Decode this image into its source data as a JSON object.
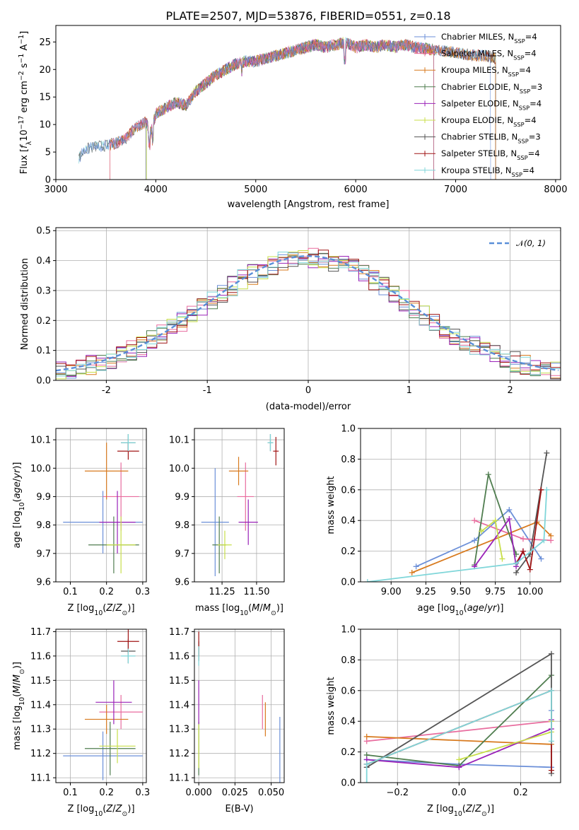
{
  "chart_data": [
    {
      "id": "spectrum",
      "type": "line",
      "title": "PLATE=2507, MJD=53876, FIBERID=0551, z=0.18",
      "xlabel": "wavelength [Angstrom, rest frame]",
      "ylabel": "Flux [fλ10⁻¹⁷ erg cm⁻² s⁻¹ A⁻¹]",
      "xlim": [
        3000,
        8050
      ],
      "ylim": [
        0,
        28
      ],
      "xticks": [
        3000,
        4000,
        5000,
        6000,
        7000,
        8000
      ],
      "yticks": [
        0,
        5,
        10,
        15,
        20,
        25
      ],
      "legend_position": "top-right",
      "spectrum_points": [
        [
          3230,
          4.0
        ],
        [
          3300,
          5.5
        ],
        [
          3400,
          6.0
        ],
        [
          3500,
          6.2
        ],
        [
          3600,
          6.6
        ],
        [
          3700,
          7.5
        ],
        [
          3800,
          9.5
        ],
        [
          3900,
          10.5
        ],
        [
          3950,
          8.5
        ],
        [
          4000,
          12.0
        ],
        [
          4100,
          13.0
        ],
        [
          4200,
          14.0
        ],
        [
          4300,
          13.5
        ],
        [
          4400,
          16.0
        ],
        [
          4500,
          17.5
        ],
        [
          4600,
          19.0
        ],
        [
          4700,
          20.0
        ],
        [
          4800,
          21.0
        ],
        [
          4900,
          21.5
        ],
        [
          5000,
          21.5
        ],
        [
          5100,
          22.0
        ],
        [
          5200,
          22.5
        ],
        [
          5300,
          23.0
        ],
        [
          5400,
          23.5
        ],
        [
          5500,
          24.0
        ],
        [
          5600,
          24.5
        ],
        [
          5700,
          24.0
        ],
        [
          5800,
          24.5
        ],
        [
          5900,
          25.0
        ],
        [
          6000,
          24.0
        ],
        [
          6100,
          24.5
        ],
        [
          6200,
          24.0
        ],
        [
          6300,
          24.5
        ],
        [
          6400,
          24.0
        ],
        [
          6500,
          24.5
        ],
        [
          6600,
          24.0
        ],
        [
          6700,
          23.8
        ],
        [
          6800,
          23.5
        ],
        [
          6900,
          23.3
        ],
        [
          7000,
          23.0
        ],
        [
          7100,
          22.8
        ],
        [
          7200,
          22.5
        ],
        [
          7300,
          22.5
        ],
        [
          7400,
          22.0
        ]
      ],
      "series": [
        {
          "name": "Chabrier MILES, N_SSP=4",
          "color": "#6b8fd8",
          "cut": [
            3230,
            7350
          ]
        },
        {
          "name": "Salpeter MILES, N_SSP=4",
          "color": "#e86c9e",
          "cut": [
            3540,
            6780
          ]
        },
        {
          "name": "Kroupa MILES, N_SSP=4",
          "color": "#d87a1e",
          "cut": [
            3540,
            7400
          ]
        },
        {
          "name": "Chabrier ELODIE, N_SSP=3",
          "color": "#4f7d4f",
          "cut": [
            3900,
            6780
          ]
        },
        {
          "name": "Salpeter ELODIE, N_SSP=4",
          "color": "#9a22b8",
          "cut": [
            3900,
            6780
          ]
        },
        {
          "name": "Kroupa ELODIE, N_SSP=4",
          "color": "#c8df4a",
          "cut": [
            3910,
            6780
          ]
        },
        {
          "name": "Chabrier STELIB, N_SSP=3",
          "color": "#555555",
          "cut": [
            3230,
            7400
          ]
        },
        {
          "name": "Salpeter STELIB, N_SSP=4",
          "color": "#a01515",
          "cut": [
            3540,
            7400
          ]
        },
        {
          "name": "Kroupa STELIB, N_SSP=4",
          "color": "#7fd6d9",
          "cut": [
            3230,
            7400
          ]
        }
      ]
    },
    {
      "id": "residuals",
      "type": "histogram",
      "xlabel": "(data-model)/error",
      "ylabel": "Normed distribution",
      "xlim": [
        -2.5,
        2.5
      ],
      "ylim": [
        0,
        0.51
      ],
      "xticks": [
        -2,
        -1,
        0,
        1,
        2
      ],
      "yticks": [
        0.0,
        0.1,
        0.2,
        0.3,
        0.4,
        0.5
      ],
      "grid": true,
      "legend_position": "top-right",
      "reference_curve": {
        "name": "𝒩(0,1)",
        "color": "#5a8fd8"
      }
    },
    {
      "id": "age_vs_Z",
      "type": "errorbar",
      "xlabel": "Z [log10(Z/Z⊙)]",
      "ylabel": "age  [log10(age/yr)]",
      "xlim": [
        0.06,
        0.31
      ],
      "ylim": [
        9.6,
        10.14
      ],
      "xticks": [
        0.1,
        0.2,
        0.3
      ],
      "yticks": [
        9.6,
        9.7,
        9.8,
        9.9,
        10.0,
        10.1
      ],
      "grid": true,
      "points": [
        {
          "x": 0.19,
          "y": 9.81,
          "xerr": 0.11,
          "yerr": 0.11,
          "color": "#6b8fd8"
        },
        {
          "x": 0.24,
          "y": 9.9,
          "xerr": 0.05,
          "yerr": 0.12,
          "color": "#e86c9e"
        },
        {
          "x": 0.2,
          "y": 9.99,
          "xerr": 0.06,
          "yerr": 0.1,
          "color": "#d87a1e"
        },
        {
          "x": 0.22,
          "y": 9.73,
          "xerr": 0.07,
          "yerr": 0.1,
          "color": "#4f7d4f"
        },
        {
          "x": 0.23,
          "y": 9.81,
          "xerr": 0.05,
          "yerr": 0.11,
          "color": "#9a22b8"
        },
        {
          "x": 0.24,
          "y": 9.73,
          "xerr": 0.04,
          "yerr": 0.1,
          "color": "#c8df4a"
        },
        {
          "x": 0.26,
          "y": 10.09,
          "xerr": 0.02,
          "yerr": 0.03,
          "color": "#555555"
        },
        {
          "x": 0.26,
          "y": 10.06,
          "xerr": 0.03,
          "yerr": 0.03,
          "color": "#a01515"
        },
        {
          "x": 0.26,
          "y": 10.09,
          "xerr": 0.02,
          "yerr": 0.03,
          "color": "#7fd6d9"
        }
      ]
    },
    {
      "id": "age_vs_mass",
      "type": "errorbar",
      "xlabel": "mass [log10(M/M⊙)]",
      "ylabel": "",
      "xlim": [
        11.05,
        11.7
      ],
      "ylim": [
        9.6,
        10.14
      ],
      "xticks": [
        11.25,
        11.5
      ],
      "xticklabels": [
        "11.25",
        "11.50"
      ],
      "yticks": [
        9.6,
        9.7,
        9.8,
        9.9,
        10.0,
        10.1
      ],
      "grid": true,
      "points": [
        {
          "x": 11.2,
          "y": 9.81,
          "xerr": 0.1,
          "yerr": 0.19,
          "color": "#6b8fd8"
        },
        {
          "x": 11.42,
          "y": 9.9,
          "xerr": 0.06,
          "yerr": 0.12,
          "color": "#e86c9e"
        },
        {
          "x": 11.37,
          "y": 9.99,
          "xerr": 0.07,
          "yerr": 0.05,
          "color": "#d87a1e"
        },
        {
          "x": 11.23,
          "y": 9.73,
          "xerr": 0.05,
          "yerr": 0.1,
          "color": "#4f7d4f"
        },
        {
          "x": 11.44,
          "y": 9.81,
          "xerr": 0.07,
          "yerr": 0.08,
          "color": "#9a22b8"
        },
        {
          "x": 11.27,
          "y": 9.73,
          "xerr": 0.05,
          "yerr": 0.05,
          "color": "#c8df4a"
        },
        {
          "x": 11.6,
          "y": 10.09,
          "xerr": 0.02,
          "yerr": 0.03,
          "color": "#555555"
        },
        {
          "x": 11.64,
          "y": 10.06,
          "xerr": 0.02,
          "yerr": 0.05,
          "color": "#a01515"
        },
        {
          "x": 11.6,
          "y": 10.09,
          "xerr": 0.02,
          "yerr": 0.03,
          "color": "#7fd6d9"
        }
      ]
    },
    {
      "id": "weight_vs_age",
      "type": "line",
      "xlabel": "age  [log10(age/yr)]",
      "ylabel": "mass weight",
      "xlim": [
        8.78,
        10.22
      ],
      "ylim": [
        0,
        1.0
      ],
      "xticks": [
        9.0,
        9.25,
        9.5,
        9.75,
        10.0
      ],
      "xticklabels": [
        "9.00",
        "9.25",
        "9.50",
        "9.75",
        "10.00"
      ],
      "yticks": [
        0.0,
        0.2,
        0.4,
        0.6,
        0.8,
        1.0
      ],
      "grid": true,
      "series": [
        {
          "color": "#6b8fd8",
          "x": [
            9.18,
            9.6,
            9.85,
            10.08
          ],
          "y": [
            0.1,
            0.27,
            0.47,
            0.15
          ]
        },
        {
          "color": "#e86c9e",
          "x": [
            9.6,
            9.95,
            10.15
          ],
          "y": [
            0.4,
            0.28,
            0.27
          ]
        },
        {
          "color": "#d87a1e",
          "x": [
            9.15,
            10.05,
            10.15
          ],
          "y": [
            0.06,
            0.39,
            0.3
          ]
        },
        {
          "color": "#4f7d4f",
          "x": [
            9.6,
            9.7,
            9.9
          ],
          "y": [
            0.11,
            0.7,
            0.18
          ]
        },
        {
          "color": "#9a22b8",
          "x": [
            9.6,
            9.85,
            9.9,
            9.95
          ],
          "y": [
            0.1,
            0.41,
            0.1,
            0.2
          ]
        },
        {
          "color": "#c8df4a",
          "x": [
            9.65,
            9.75,
            9.8
          ],
          "y": [
            0.33,
            0.4,
            0.15
          ]
        },
        {
          "color": "#555555",
          "x": [
            9.9,
            10.0,
            10.12
          ],
          "y": [
            0.06,
            0.18,
            0.84
          ]
        },
        {
          "color": "#a01515",
          "x": [
            9.9,
            9.95,
            10.0,
            10.08
          ],
          "y": [
            0.12,
            0.2,
            0.08,
            0.6
          ]
        },
        {
          "color": "#7fd6d9",
          "x": [
            8.83,
            9.9,
            10.1,
            10.12
          ],
          "y": [
            0.0,
            0.12,
            0.27,
            0.6
          ]
        }
      ]
    },
    {
      "id": "mass_vs_Z",
      "type": "errorbar",
      "xlabel": "Z [log10(Z/Z⊙)]",
      "ylabel": "mass [log10(M/M⊙)]",
      "xlim": [
        0.06,
        0.31
      ],
      "ylim": [
        11.08,
        11.71
      ],
      "xticks": [
        0.1,
        0.2,
        0.3
      ],
      "yticks": [
        11.1,
        11.2,
        11.3,
        11.4,
        11.5,
        11.6,
        11.7
      ],
      "grid": true,
      "points": [
        {
          "x": 0.19,
          "y": 11.19,
          "xerr": 0.11,
          "yerr": 0.1,
          "color": "#6b8fd8"
        },
        {
          "x": 0.24,
          "y": 11.37,
          "xerr": 0.06,
          "yerr": 0.07,
          "color": "#e86c9e"
        },
        {
          "x": 0.2,
          "y": 11.34,
          "xerr": 0.06,
          "yerr": 0.06,
          "color": "#d87a1e"
        },
        {
          "x": 0.21,
          "y": 11.22,
          "xerr": 0.07,
          "yerr": 0.11,
          "color": "#4f7d4f"
        },
        {
          "x": 0.22,
          "y": 11.41,
          "xerr": 0.05,
          "yerr": 0.09,
          "color": "#9a22b8"
        },
        {
          "x": 0.23,
          "y": 11.23,
          "xerr": 0.05,
          "yerr": 0.07,
          "color": "#c8df4a"
        },
        {
          "x": 0.26,
          "y": 11.62,
          "xerr": 0.02,
          "yerr": 0.05,
          "color": "#555555"
        },
        {
          "x": 0.26,
          "y": 11.66,
          "xerr": 0.03,
          "yerr": 0.05,
          "color": "#a01515"
        },
        {
          "x": 0.26,
          "y": 11.6,
          "xerr": 0.02,
          "yerr": 0.03,
          "color": "#7fd6d9"
        }
      ]
    },
    {
      "id": "mass_vs_EBV",
      "type": "errorbar",
      "xlabel": "E(B-V)",
      "ylabel": "",
      "xlim": [
        -0.003,
        0.059
      ],
      "ylim": [
        11.08,
        11.71
      ],
      "xticks": [
        0.0,
        0.025,
        0.05
      ],
      "xticklabels": [
        "0.000",
        "0.025",
        "0.050"
      ],
      "yticks": [
        11.1,
        11.2,
        11.3,
        11.4,
        11.5,
        11.6,
        11.7
      ],
      "grid": true,
      "points": [
        {
          "x": 0.056,
          "y": 11.19,
          "xerr": 0,
          "yerr": 0.16,
          "color": "#6b8fd8"
        },
        {
          "x": 0.044,
          "y": 11.37,
          "xerr": 0,
          "yerr": 0.07,
          "color": "#e86c9e"
        },
        {
          "x": 0.046,
          "y": 11.34,
          "xerr": 0,
          "yerr": 0.07,
          "color": "#d87a1e"
        },
        {
          "x": 0.0,
          "y": 11.22,
          "xerr": 0,
          "yerr": 0.11,
          "color": "#4f7d4f"
        },
        {
          "x": 0.0,
          "y": 11.41,
          "xerr": 0,
          "yerr": 0.09,
          "color": "#9a22b8"
        },
        {
          "x": 0.0,
          "y": 11.23,
          "xerr": 0,
          "yerr": 0.09,
          "color": "#c8df4a"
        },
        {
          "x": 0.0,
          "y": 11.62,
          "xerr": 0,
          "yerr": 0.04,
          "color": "#555555"
        },
        {
          "x": 0.0,
          "y": 11.65,
          "xerr": 0,
          "yerr": 0.05,
          "color": "#a01515"
        },
        {
          "x": 0.0,
          "y": 11.6,
          "xerr": 0,
          "yerr": 0.04,
          "color": "#7fd6d9"
        }
      ]
    },
    {
      "id": "weight_vs_Z",
      "type": "line",
      "xlabel": "Z [log10(Z/Z⊙)]",
      "ylabel": "mass weight",
      "xlim": [
        -0.32,
        0.33
      ],
      "ylim": [
        0,
        1.0
      ],
      "xticks": [
        -0.2,
        0.0,
        0.2
      ],
      "xticklabels": [
        "−0.2",
        "0.0",
        "0.2"
      ],
      "yticks": [
        0.0,
        0.2,
        0.4,
        0.6,
        0.8,
        1.0
      ],
      "grid": true,
      "series": [
        {
          "color": "#6b8fd8",
          "x": [
            -0.3,
            0.0,
            0.3,
            0.3
          ],
          "y": [
            0.15,
            0.12,
            0.1,
            0.47
          ]
        },
        {
          "color": "#e86c9e",
          "x": [
            -0.3,
            0.3
          ],
          "y": [
            0.27,
            0.4
          ]
        },
        {
          "color": "#d87a1e",
          "x": [
            -0.3,
            0.3
          ],
          "y": [
            0.3,
            0.25
          ]
        },
        {
          "color": "#4f7d4f",
          "x": [
            -0.3,
            0.0,
            0.3
          ],
          "y": [
            0.18,
            0.11,
            0.7
          ]
        },
        {
          "color": "#9a22b8",
          "x": [
            -0.3,
            0.0,
            0.3,
            0.3
          ],
          "y": [
            0.15,
            0.1,
            0.35,
            0.41
          ]
        },
        {
          "color": "#c8df4a",
          "x": [
            0.0,
            0.3,
            0.3
          ],
          "y": [
            0.15,
            0.33,
            0.4
          ]
        },
        {
          "color": "#555555",
          "x": [
            -0.3,
            0.3,
            0.3
          ],
          "y": [
            0.1,
            0.84,
            0.06
          ]
        },
        {
          "color": "#a01515",
          "x": [
            -0.3,
            0.3,
            0.3
          ],
          "y": [
            0.12,
            0.6,
            0.08
          ]
        },
        {
          "color": "#7fd6d9",
          "x": [
            -0.3,
            -0.3,
            0.3,
            0.3
          ],
          "y": [
            0.0,
            0.12,
            0.6,
            0.27
          ]
        }
      ]
    }
  ]
}
